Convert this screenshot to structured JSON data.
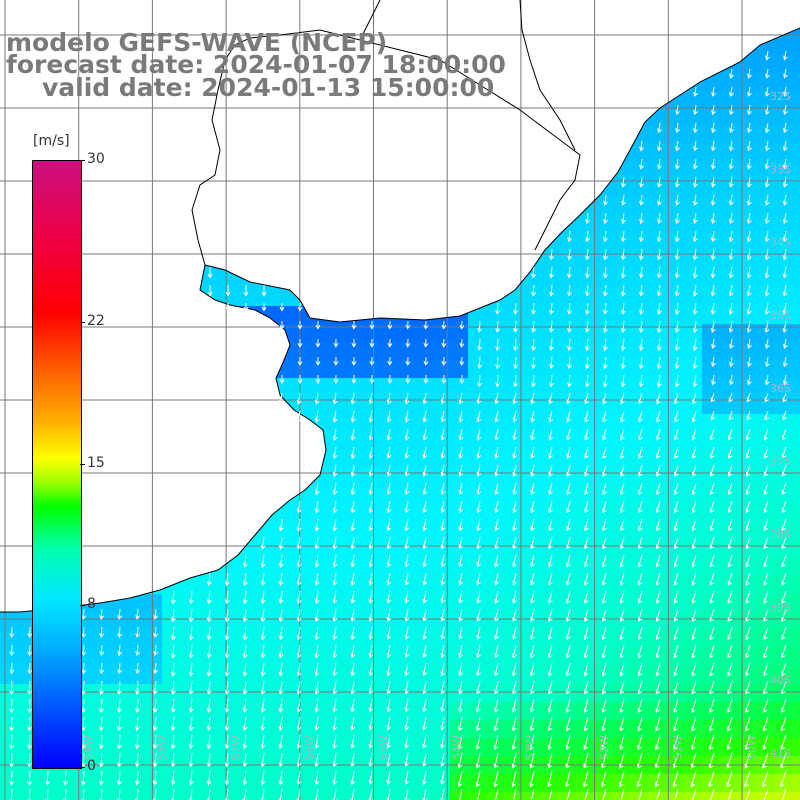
{
  "title": {
    "line1": "modelo GEFS-WAVE (NCEP)",
    "line2": "forecast date: 2024-01-07 18:00:00",
    "line3": "valid date: 2024-01-13 15:00:00"
  },
  "colorbar": {
    "unit": "[m/s]",
    "min": 0,
    "max": 30,
    "ticks": [
      {
        "label": "30",
        "value": 30
      },
      {
        "label": "22",
        "value": 22
      },
      {
        "label": "15",
        "value": 15
      },
      {
        "label": "8",
        "value": 8
      },
      {
        "label": "0",
        "value": 0
      }
    ]
  },
  "map": {
    "lat_labels": [
      "32S",
      "33S",
      "34S",
      "35S",
      "36S",
      "37S",
      "38S",
      "39S",
      "40S",
      "41S"
    ],
    "lon_labels": [
      "59W",
      "58W",
      "57W",
      "56W",
      "55W",
      "54W",
      "53W",
      "52W",
      "51W",
      "50W"
    ],
    "colors": {
      "land": "#ffffff",
      "coast": "#000000",
      "grid": "#777777",
      "arrow": "#ffffff"
    }
  }
}
